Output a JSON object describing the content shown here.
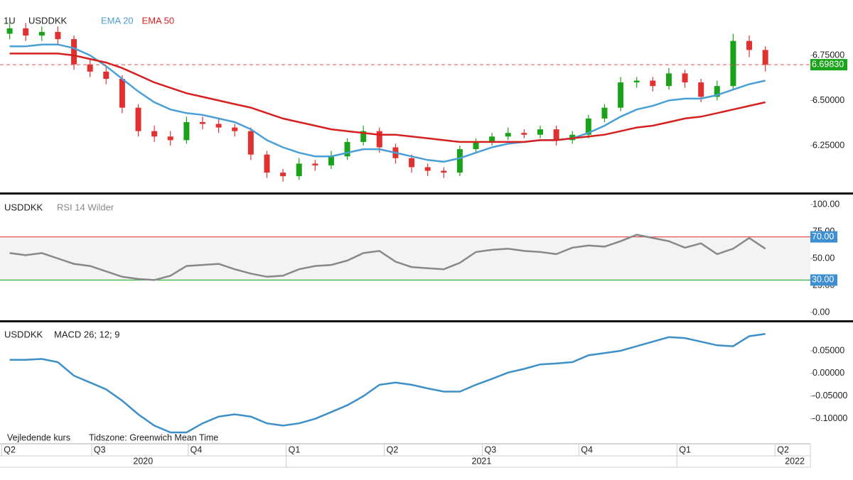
{
  "chart_data": [
    {
      "type": "candlestick",
      "title": "USDDKK",
      "interval": "1U",
      "up_color": "#1aa31a",
      "down_color": "#e03030",
      "open": [
        6.87,
        6.9,
        6.86,
        6.88,
        6.84,
        6.7,
        6.66,
        6.62,
        6.46,
        6.33,
        6.3,
        6.28,
        6.38,
        6.37,
        6.35,
        6.33,
        6.2,
        6.1,
        6.08,
        6.15,
        6.14,
        6.19,
        6.27,
        6.33,
        6.24,
        6.18,
        6.13,
        6.11,
        6.1,
        6.23,
        6.27,
        6.3,
        6.32,
        6.31,
        6.34,
        6.28,
        6.31,
        6.4,
        6.46,
        6.6,
        6.61,
        6.58,
        6.65,
        6.6,
        6.52,
        6.58,
        6.83,
        6.78
      ],
      "high": [
        6.93,
        6.93,
        6.91,
        6.91,
        6.86,
        6.73,
        6.69,
        6.64,
        6.48,
        6.36,
        6.33,
        6.41,
        6.41,
        6.4,
        6.37,
        6.35,
        6.22,
        6.12,
        6.18,
        6.17,
        6.22,
        6.29,
        6.36,
        6.35,
        6.26,
        6.2,
        6.15,
        6.13,
        6.25,
        6.29,
        6.32,
        6.35,
        6.34,
        6.36,
        6.36,
        6.33,
        6.42,
        6.48,
        6.63,
        6.63,
        6.63,
        6.68,
        6.67,
        6.62,
        6.61,
        6.87,
        6.86,
        6.8
      ],
      "low": [
        6.84,
        6.83,
        6.83,
        6.81,
        6.67,
        6.63,
        6.59,
        6.43,
        6.3,
        6.27,
        6.25,
        6.26,
        6.34,
        6.32,
        6.3,
        6.17,
        6.07,
        6.05,
        6.06,
        6.11,
        6.12,
        6.17,
        6.25,
        6.21,
        6.15,
        6.1,
        6.08,
        6.07,
        6.08,
        6.21,
        6.25,
        6.28,
        6.29,
        6.29,
        6.25,
        6.26,
        6.29,
        6.38,
        6.44,
        6.57,
        6.55,
        6.56,
        6.57,
        6.49,
        6.5,
        6.56,
        6.74,
        6.66
      ],
      "close": [
        6.9,
        6.86,
        6.88,
        6.84,
        6.7,
        6.66,
        6.62,
        6.46,
        6.33,
        6.3,
        6.28,
        6.38,
        6.37,
        6.35,
        6.33,
        6.2,
        6.1,
        6.08,
        6.15,
        6.14,
        6.19,
        6.27,
        6.33,
        6.24,
        6.18,
        6.13,
        6.11,
        6.1,
        6.23,
        6.27,
        6.3,
        6.32,
        6.31,
        6.34,
        6.28,
        6.31,
        6.4,
        6.46,
        6.6,
        6.61,
        6.58,
        6.65,
        6.6,
        6.52,
        6.58,
        6.83,
        6.78,
        6.6983
      ],
      "series": [
        {
          "name": "EMA 20",
          "color": "#4a9fd5",
          "values": [
            6.8,
            6.8,
            6.81,
            6.81,
            6.79,
            6.75,
            6.69,
            6.62,
            6.55,
            6.49,
            6.45,
            6.43,
            6.42,
            6.4,
            6.38,
            6.34,
            6.28,
            6.24,
            6.21,
            6.19,
            6.19,
            6.21,
            6.23,
            6.23,
            6.21,
            6.19,
            6.17,
            6.16,
            6.18,
            6.21,
            6.24,
            6.26,
            6.27,
            6.28,
            6.28,
            6.29,
            6.32,
            6.36,
            6.41,
            6.45,
            6.47,
            6.5,
            6.51,
            6.51,
            6.53,
            6.56,
            6.59,
            6.61
          ]
        },
        {
          "name": "EMA 50",
          "color": "#d62020",
          "values": [
            6.76,
            6.76,
            6.76,
            6.76,
            6.75,
            6.73,
            6.71,
            6.68,
            6.64,
            6.6,
            6.57,
            6.54,
            6.52,
            6.5,
            6.48,
            6.46,
            6.43,
            6.4,
            6.38,
            6.36,
            6.34,
            6.33,
            6.32,
            6.31,
            6.31,
            6.3,
            6.29,
            6.28,
            6.27,
            6.27,
            6.27,
            6.27,
            6.27,
            6.28,
            6.28,
            6.29,
            6.3,
            6.31,
            6.33,
            6.35,
            6.36,
            6.38,
            6.4,
            6.41,
            6.43,
            6.45,
            6.47,
            6.49
          ]
        }
      ],
      "last": {
        "value": 6.6983,
        "label": "6.69830"
      },
      "ylim": [
        5.994,
        7.057
      ],
      "yticks": [
        {
          "value": 6.75,
          "label": "6.75000"
        },
        {
          "value": 6.5,
          "label": "6.50000"
        },
        {
          "value": 6.25,
          "label": "6.25000"
        }
      ]
    },
    {
      "type": "line",
      "title": "USDDKK",
      "subtitle": "RSI 14 Wilder",
      "color": "#888888",
      "values": [
        55,
        53,
        55,
        50,
        45,
        43,
        38,
        33,
        31,
        30,
        34,
        43,
        44,
        45,
        40,
        36,
        33,
        34,
        40,
        43,
        44,
        48,
        55,
        57,
        47,
        42,
        41,
        40,
        46,
        56,
        58,
        59,
        57,
        56,
        54,
        60,
        62,
        61,
        66,
        72,
        69,
        66,
        60,
        64,
        54,
        59,
        69,
        59
      ],
      "levels": [
        {
          "value": 70,
          "label": "70.00",
          "color": "#e03030"
        },
        {
          "value": 30,
          "label": "30.00",
          "color": "#1aa31a"
        }
      ],
      "ylim": [
        -6.6,
        107.9
      ],
      "yticks": [
        {
          "value": 100,
          "label": "100.00"
        },
        {
          "value": 75,
          "label": "75.00"
        },
        {
          "value": 50,
          "label": "50.00"
        },
        {
          "value": 25,
          "label": "25.00"
        },
        {
          "value": 0,
          "label": "0.00"
        }
      ]
    },
    {
      "type": "line",
      "title": "USDDKK",
      "subtitle": "MACD 26; 12; 9",
      "color": "#3d8fc8",
      "values": [
        0.03,
        0.03,
        0.032,
        0.025,
        -0.005,
        -0.02,
        -0.035,
        -0.06,
        -0.09,
        -0.115,
        -0.13,
        -0.13,
        -0.11,
        -0.095,
        -0.09,
        -0.095,
        -0.11,
        -0.115,
        -0.11,
        -0.1,
        -0.085,
        -0.07,
        -0.05,
        -0.025,
        -0.02,
        -0.025,
        -0.033,
        -0.04,
        -0.04,
        -0.025,
        -0.012,
        0.002,
        0.01,
        0.02,
        0.022,
        0.025,
        0.04,
        0.045,
        0.05,
        0.06,
        0.07,
        0.08,
        0.078,
        0.07,
        0.062,
        0.06,
        0.082,
        0.087
      ],
      "ylim": [
        -0.155,
        0.111
      ],
      "yticks": [
        {
          "value": 0.05,
          "label": "0.05000"
        },
        {
          "value": 0,
          "label": "0.00000"
        },
        {
          "value": -0.05,
          "label": "-0.05000"
        },
        {
          "value": -0.1,
          "label": "-0.10000"
        }
      ]
    }
  ],
  "x_axis": {
    "xlim": [
      -0.1,
      50.3
    ],
    "quarters": [
      {
        "value": 0,
        "label": "Q2"
      },
      {
        "value": 5.6,
        "label": "Q3"
      },
      {
        "value": 11.6,
        "label": "Q4"
      },
      {
        "value": 17.7,
        "label": "Q1"
      },
      {
        "value": 23.8,
        "label": "Q2"
      },
      {
        "value": 29.9,
        "label": "Q3"
      },
      {
        "value": 35.9,
        "label": "Q4"
      },
      {
        "value": 42,
        "label": "Q1"
      },
      {
        "value": 48.1,
        "label": "Q2"
      }
    ],
    "years": [
      "2020",
      "2021",
      "2022"
    ],
    "year_starts": [
      17.7,
      42
    ]
  },
  "footer": [
    "Vejledende kurs",
    "Tidszone: Greenwich Mean Time"
  ]
}
